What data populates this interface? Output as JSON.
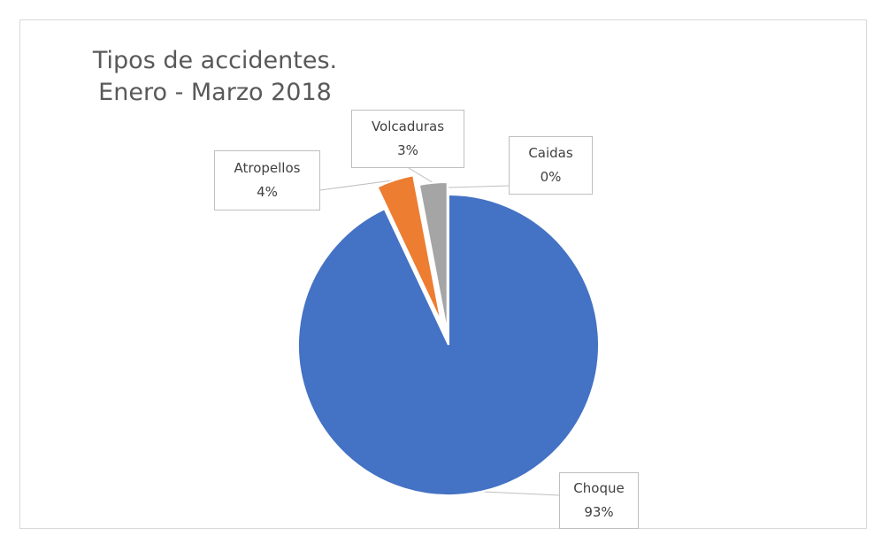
{
  "chart_data": {
    "type": "pie",
    "title": "Tipos de accidentes.\nEnero - Marzo 2018",
    "slices": [
      {
        "label": "Choque",
        "percent_label": "93%",
        "value": 93,
        "color": "#4472c4"
      },
      {
        "label": "Atropellos",
        "percent_label": "4%",
        "value": 4,
        "color": "#ed7d31"
      },
      {
        "label": "Volcaduras",
        "percent_label": "3%",
        "value": 3,
        "color": "#a5a5a5"
      },
      {
        "label": "Caidas",
        "percent_label": "0%",
        "value": 0,
        "color": "#ffc000"
      }
    ]
  }
}
